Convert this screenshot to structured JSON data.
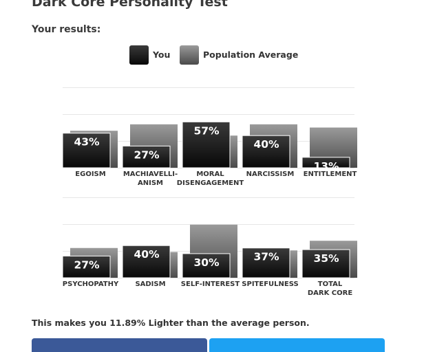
{
  "page": {
    "title": "Dark Core Personality Test",
    "subtitle": "Your results:",
    "summary": "This makes you 11.89% Lighter than the average person."
  },
  "legend": {
    "you_label": "You",
    "population_label": "Population Average"
  },
  "colors": {
    "you_top": "#3a3a3a",
    "you_bottom": "#080808",
    "pop_top": "#9a9a9a",
    "pop_bottom": "#4a4a4a",
    "gridline": "#e6e6e6",
    "value_text": "#ffffff",
    "facebook_blue": "#3b5998",
    "twitter_blue": "#1da1f2"
  },
  "chart_data": [
    {
      "type": "bar",
      "categories": [
        [
          "EGOISM"
        ],
        [
          "MACHIAVELLI-",
          "ANISM"
        ],
        [
          "MORAL",
          "DISENGAGEMENT"
        ],
        [
          "NARCISSISM"
        ],
        [
          "ENTITLEMENT"
        ]
      ],
      "series": [
        {
          "name": "You",
          "values": [
            43,
            27,
            57,
            40,
            13
          ]
        },
        {
          "name": "Population Average",
          "values": [
            46,
            54,
            40,
            54,
            50
          ]
        }
      ],
      "value_labels": [
        "43%",
        "27%",
        "57%",
        "40%",
        "13%"
      ],
      "ylim": [
        0,
        100
      ],
      "grid": true
    },
    {
      "type": "bar",
      "categories": [
        [
          "PSYCHOPATHY"
        ],
        [
          "SADISM"
        ],
        [
          "SELF-INTEREST"
        ],
        [
          "SPITEFULNESS"
        ],
        [
          "TOTAL",
          "DARK CORE"
        ]
      ],
      "series": [
        {
          "name": "You",
          "values": [
            27,
            40,
            30,
            37,
            35
          ]
        },
        {
          "name": "Population Average",
          "values": [
            37,
            32,
            66,
            34,
            46
          ]
        }
      ],
      "value_labels": [
        "27%",
        "40%",
        "30%",
        "37%",
        "35%"
      ],
      "ylim": [
        0,
        100
      ],
      "grid": true
    }
  ]
}
